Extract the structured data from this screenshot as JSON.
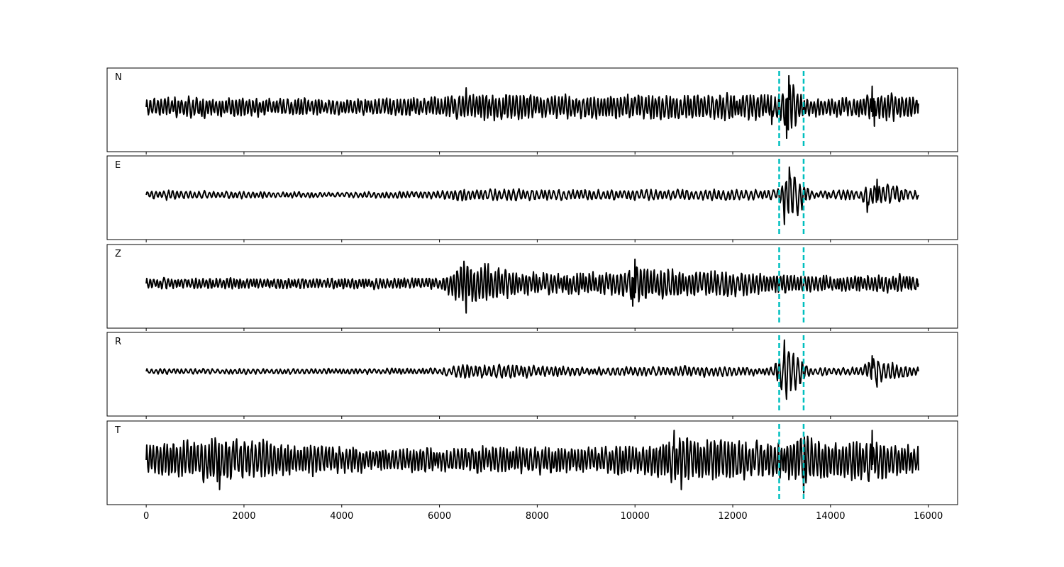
{
  "chart_data": {
    "type": "line",
    "title": "",
    "xlabel": "",
    "ylabel": "",
    "xlim": [
      -800,
      16600
    ],
    "x_ticks": [
      0,
      2000,
      4000,
      6000,
      8000,
      10000,
      12000,
      14000,
      16000
    ],
    "x_tick_labels": [
      "0",
      "2000",
      "4000",
      "6000",
      "8000",
      "10000",
      "12000",
      "14000",
      "16000"
    ],
    "sample_count": 15800,
    "grid": false,
    "legend": "none",
    "marker_lines": [
      {
        "x": 12950,
        "color": "#00bfbf",
        "style": "dashed"
      },
      {
        "x": 13450,
        "color": "#00bfbf",
        "style": "dashed"
      }
    ],
    "series": [
      {
        "name": "N",
        "description_points": [
          {
            "x": 0,
            "y": 0
          },
          {
            "x": 6550,
            "y": 0.55
          },
          {
            "x": 12800,
            "y": -0.5
          },
          {
            "x": 13100,
            "y": -0.9
          },
          {
            "x": 13150,
            "y": 0.9
          },
          {
            "x": 14850,
            "y": 0.6
          },
          {
            "x": 14900,
            "y": -0.55
          },
          {
            "x": 15800,
            "y": 0.1
          }
        ],
        "envelope": [
          [
            0,
            0.35
          ],
          [
            1000,
            0.4
          ],
          [
            2000,
            0.35
          ],
          [
            4000,
            0.3
          ],
          [
            6000,
            0.35
          ],
          [
            6500,
            0.55
          ],
          [
            8000,
            0.45
          ],
          [
            10000,
            0.45
          ],
          [
            12500,
            0.5
          ],
          [
            12900,
            0.4
          ],
          [
            13150,
            0.95
          ],
          [
            13450,
            0.35
          ],
          [
            14500,
            0.4
          ],
          [
            14900,
            0.55
          ],
          [
            15800,
            0.4
          ]
        ],
        "color": "#000000"
      },
      {
        "name": "E",
        "description_points": [
          {
            "x": 0,
            "y": 0
          },
          {
            "x": 13050,
            "y": -0.85
          },
          {
            "x": 13150,
            "y": 0.8
          },
          {
            "x": 14750,
            "y": -0.5
          },
          {
            "x": 14950,
            "y": 0.45
          },
          {
            "x": 15800,
            "y": 0
          }
        ],
        "envelope": [
          [
            0,
            0.15
          ],
          [
            500,
            0.2
          ],
          [
            1000,
            0.15
          ],
          [
            4000,
            0.1
          ],
          [
            6000,
            0.15
          ],
          [
            6500,
            0.25
          ],
          [
            8000,
            0.2
          ],
          [
            10000,
            0.2
          ],
          [
            12500,
            0.2
          ],
          [
            12900,
            0.2
          ],
          [
            13100,
            0.9
          ],
          [
            13400,
            0.6
          ],
          [
            13600,
            0.15
          ],
          [
            14600,
            0.2
          ],
          [
            14900,
            0.5
          ],
          [
            15800,
            0.15
          ]
        ],
        "color": "#000000"
      },
      {
        "name": "Z",
        "description_points": [
          {
            "x": 0,
            "y": 0
          },
          {
            "x": 6550,
            "y": 0.85
          },
          {
            "x": 6550,
            "y": -0.85
          },
          {
            "x": 9950,
            "y": -0.65
          },
          {
            "x": 10000,
            "y": 0.7
          },
          {
            "x": 15800,
            "y": 0
          }
        ],
        "envelope": [
          [
            0,
            0.2
          ],
          [
            2000,
            0.2
          ],
          [
            4000,
            0.2
          ],
          [
            6000,
            0.2
          ],
          [
            6500,
            0.85
          ],
          [
            7000,
            0.7
          ],
          [
            7500,
            0.5
          ],
          [
            8000,
            0.4
          ],
          [
            9500,
            0.4
          ],
          [
            10000,
            0.7
          ],
          [
            11000,
            0.5
          ],
          [
            12000,
            0.45
          ],
          [
            13000,
            0.35
          ],
          [
            14000,
            0.3
          ],
          [
            15800,
            0.35
          ]
        ],
        "color": "#000000"
      },
      {
        "name": "R",
        "description_points": [
          {
            "x": 0,
            "y": 0
          },
          {
            "x": 13050,
            "y": 0.9
          },
          {
            "x": 13100,
            "y": -0.8
          },
          {
            "x": 14850,
            "y": 0.45
          },
          {
            "x": 14950,
            "y": -0.45
          },
          {
            "x": 15800,
            "y": 0
          }
        ],
        "envelope": [
          [
            0,
            0.1
          ],
          [
            3000,
            0.1
          ],
          [
            6000,
            0.12
          ],
          [
            6500,
            0.25
          ],
          [
            7500,
            0.25
          ],
          [
            9000,
            0.15
          ],
          [
            11000,
            0.2
          ],
          [
            12800,
            0.15
          ],
          [
            13100,
            0.95
          ],
          [
            13400,
            0.5
          ],
          [
            13600,
            0.15
          ],
          [
            14600,
            0.15
          ],
          [
            14900,
            0.5
          ],
          [
            15800,
            0.15
          ]
        ],
        "color": "#000000"
      },
      {
        "name": "T",
        "description_points": [
          {
            "x": 0,
            "y": 0
          },
          {
            "x": 1500,
            "y": -0.85
          },
          {
            "x": 10800,
            "y": 0.85
          },
          {
            "x": 10950,
            "y": -0.85
          },
          {
            "x": 13450,
            "y": -0.95
          },
          {
            "x": 14850,
            "y": 0.85
          },
          {
            "x": 15800,
            "y": -0.3
          }
        ],
        "envelope": [
          [
            0,
            0.6
          ],
          [
            1500,
            0.85
          ],
          [
            3000,
            0.6
          ],
          [
            5000,
            0.45
          ],
          [
            7000,
            0.5
          ],
          [
            9000,
            0.5
          ],
          [
            10500,
            0.6
          ],
          [
            10900,
            0.9
          ],
          [
            12000,
            0.7
          ],
          [
            13000,
            0.7
          ],
          [
            13450,
            0.95
          ],
          [
            14000,
            0.65
          ],
          [
            14900,
            0.85
          ],
          [
            15800,
            0.5
          ]
        ],
        "color": "#000000"
      }
    ]
  }
}
